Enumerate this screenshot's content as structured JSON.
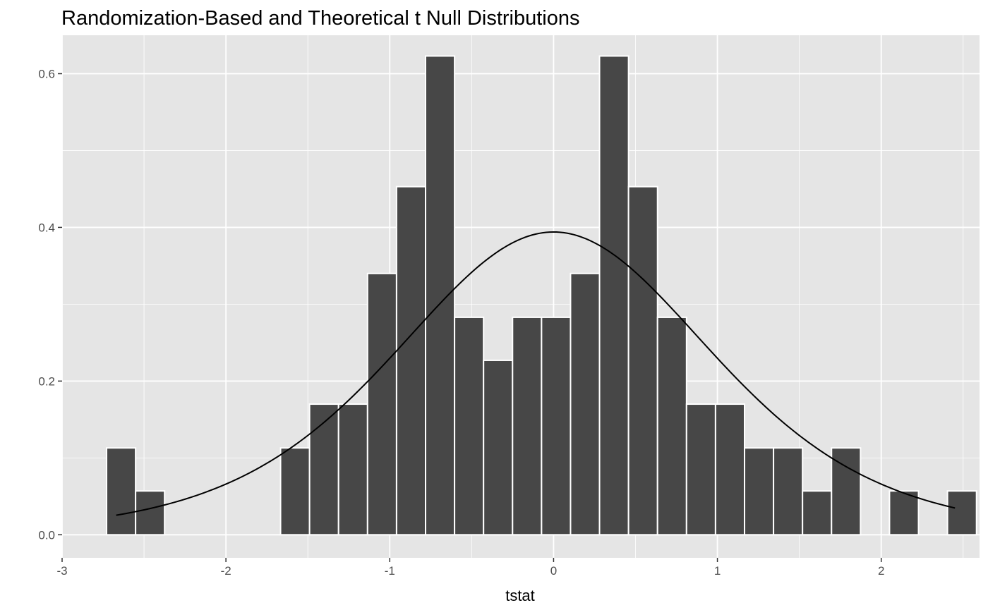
{
  "chart_data": {
    "type": "bar",
    "title": "Randomization-Based and Theoretical t Null Distributions",
    "xlabel": "tstat",
    "ylabel": "",
    "xlim": [
      -3,
      2.6
    ],
    "ylim": [
      -0.03,
      0.65
    ],
    "x_ticks": [
      -3,
      -2,
      -1,
      0,
      1,
      2
    ],
    "x_tick_labels": [
      "-3",
      "-2",
      "-1",
      "0",
      "1",
      "2"
    ],
    "y_ticks": [
      0.0,
      0.2,
      0.4,
      0.6
    ],
    "y_tick_labels": [
      "0.0",
      "0.2",
      "0.4",
      "0.6"
    ],
    "bin_width": 0.177,
    "bin_centers": [
      -2.64,
      -2.463,
      -2.286,
      -2.109,
      -1.932,
      -1.755,
      -1.578,
      -1.401,
      -1.224,
      -1.047,
      -0.87,
      -0.693,
      -0.516,
      -0.339,
      -0.162,
      0.015,
      0.192,
      0.369,
      0.546,
      0.723,
      0.9,
      1.077,
      1.254,
      1.431,
      1.608,
      1.785,
      1.962,
      2.139,
      2.316,
      2.493
    ],
    "densities": [
      0.113,
      0.057,
      0,
      0,
      0,
      0,
      0.113,
      0.17,
      0.17,
      0.34,
      0.453,
      0.623,
      0.283,
      0.227,
      0.283,
      0.283,
      0.34,
      0.623,
      0.453,
      0.283,
      0.17,
      0.17,
      0.113,
      0.113,
      0.057,
      0.113,
      0,
      0.057,
      0,
      0.057
    ],
    "curve": {
      "type": "line",
      "description_values": "theoretical t density",
      "x_range": [
        -2.67,
        2.45
      ],
      "peak": 0.394
    },
    "grid": true,
    "legend": "none",
    "colors": {
      "panel_background": "#e5e5e5",
      "grid": "#ffffff",
      "bar_fill": "#474747",
      "bar_outline": "#ffffff",
      "curve": "#000000"
    }
  }
}
